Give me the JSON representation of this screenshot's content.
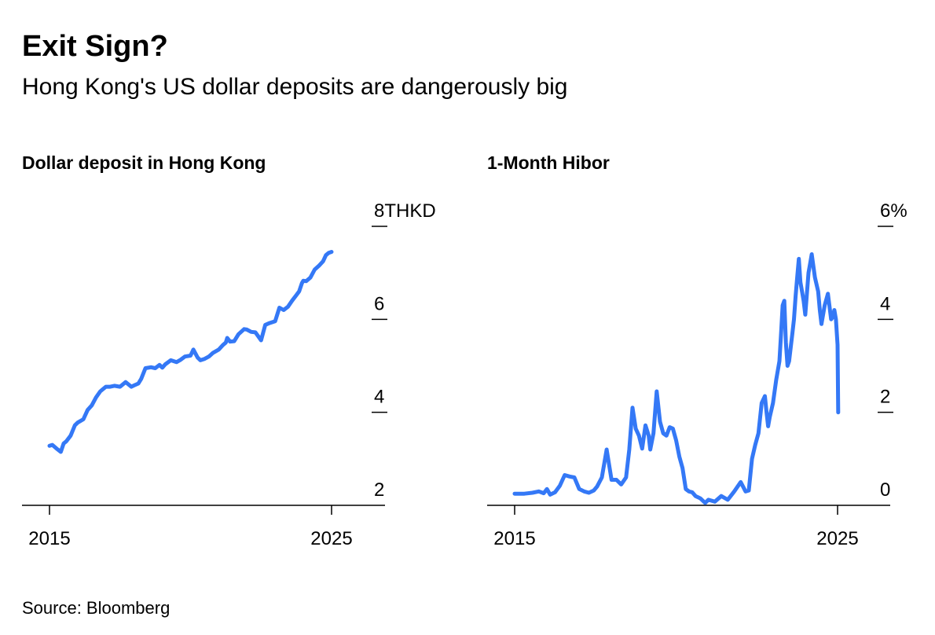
{
  "header": {
    "title": "Exit Sign?",
    "subtitle": "Hong Kong's US dollar deposits are dangerously big"
  },
  "footer": {
    "source": "Source: Bloomberg"
  },
  "colors": {
    "line": "#3478f6",
    "axis": "#000000"
  },
  "chart_data": [
    {
      "type": "line",
      "title": "Dollar deposit in Hong Kong",
      "ylabel": "",
      "unit_label": "THKD",
      "ylim": [
        2,
        8
      ],
      "yticks": [
        2,
        4,
        6,
        8
      ],
      "ytick_labels": [
        "2",
        "4",
        "6",
        "8"
      ],
      "xlim": [
        2014,
        2026
      ],
      "xticks": [
        2015,
        2025
      ],
      "xtick_labels": [
        "2015",
        "2025"
      ],
      "grid": false,
      "series": [
        {
          "x": [
            2015.0,
            2015.1,
            2015.25,
            2015.4,
            2015.5,
            2015.6,
            2015.75,
            2015.9,
            2016.0,
            2016.2,
            2016.35,
            2016.5,
            2016.65,
            2016.8,
            2017.0,
            2017.15,
            2017.3,
            2017.5,
            2017.7,
            2017.9,
            2018.0,
            2018.15,
            2018.25,
            2018.4,
            2018.6,
            2018.75,
            2018.9,
            2019.0,
            2019.1,
            2019.3,
            2019.5,
            2019.65,
            2019.8,
            2020.0,
            2020.1,
            2020.25,
            2020.35,
            2020.5,
            2020.65,
            2020.8,
            2021.0,
            2021.15,
            2021.25,
            2021.3,
            2021.4,
            2021.55,
            2021.7,
            2021.9,
            2022.0,
            2022.15,
            2022.3,
            2022.5,
            2022.65,
            2022.8,
            2023.0,
            2023.15,
            2023.3,
            2023.45,
            2023.6,
            2023.75,
            2023.85,
            2023.95,
            2024.0,
            2024.1,
            2024.25,
            2024.4,
            2024.55,
            2024.7,
            2024.8,
            2024.9,
            2025.0
          ],
          "values": [
            3.28,
            3.3,
            3.22,
            3.15,
            3.33,
            3.38,
            3.5,
            3.72,
            3.78,
            3.85,
            4.05,
            4.15,
            4.32,
            4.45,
            4.55,
            4.55,
            4.57,
            4.55,
            4.65,
            4.55,
            4.58,
            4.62,
            4.72,
            4.95,
            4.97,
            4.95,
            5.02,
            4.96,
            5.03,
            5.12,
            5.08,
            5.13,
            5.2,
            5.22,
            5.35,
            5.18,
            5.12,
            5.15,
            5.2,
            5.28,
            5.35,
            5.45,
            5.5,
            5.6,
            5.52,
            5.53,
            5.68,
            5.79,
            5.78,
            5.73,
            5.72,
            5.55,
            5.88,
            5.92,
            5.96,
            6.25,
            6.2,
            6.27,
            6.4,
            6.52,
            6.6,
            6.78,
            6.83,
            6.82,
            6.9,
            7.07,
            7.15,
            7.25,
            7.38,
            7.43,
            7.45
          ]
        }
      ]
    },
    {
      "type": "line",
      "title": "1-Month Hibor",
      "ylabel": "",
      "unit_label": "%",
      "ylim": [
        0,
        6
      ],
      "yticks": [
        0,
        2,
        4,
        6
      ],
      "ytick_labels": [
        "0",
        "2",
        "4",
        "6"
      ],
      "xlim": [
        2014,
        2026
      ],
      "xticks": [
        2015,
        2025
      ],
      "xtick_labels": [
        "2015",
        "2025"
      ],
      "grid": false,
      "series": [
        {
          "x": [
            2015.0,
            2015.3,
            2015.55,
            2015.75,
            2015.9,
            2016.0,
            2016.1,
            2016.25,
            2016.4,
            2016.55,
            2016.7,
            2016.85,
            2017.0,
            2017.15,
            2017.3,
            2017.45,
            2017.55,
            2017.7,
            2017.85,
            2018.0,
            2018.15,
            2018.3,
            2018.45,
            2018.55,
            2018.65,
            2018.75,
            2018.85,
            2018.95,
            2019.05,
            2019.15,
            2019.2,
            2019.3,
            2019.4,
            2019.5,
            2019.6,
            2019.7,
            2019.8,
            2019.9,
            2020.0,
            2020.1,
            2020.2,
            2020.3,
            2020.4,
            2020.5,
            2020.6,
            2020.75,
            2020.9,
            2021.0,
            2021.2,
            2021.4,
            2021.6,
            2021.8,
            2022.0,
            2022.15,
            2022.25,
            2022.35,
            2022.45,
            2022.55,
            2022.65,
            2022.75,
            2022.8,
            2022.85,
            2022.9,
            2023.0,
            2023.1,
            2023.2,
            2023.25,
            2023.3,
            2023.35,
            2023.4,
            2023.45,
            2023.5,
            2023.6,
            2023.65,
            2023.7,
            2023.75,
            2023.8,
            2023.85,
            2023.95,
            2024.0,
            2024.1,
            2024.15,
            2024.2,
            2024.3,
            2024.4,
            2024.45,
            2024.5,
            2024.6,
            2024.7,
            2024.8,
            2024.85,
            2024.9,
            2024.95,
            2025.0,
            2025.02
          ],
          "values": [
            0.25,
            0.25,
            0.27,
            0.3,
            0.26,
            0.35,
            0.23,
            0.28,
            0.42,
            0.65,
            0.62,
            0.6,
            0.35,
            0.3,
            0.27,
            0.32,
            0.4,
            0.6,
            1.2,
            0.55,
            0.55,
            0.45,
            0.6,
            1.2,
            2.1,
            1.65,
            1.5,
            1.22,
            1.72,
            1.5,
            1.2,
            1.55,
            2.45,
            1.8,
            1.55,
            1.5,
            1.68,
            1.65,
            1.4,
            1.05,
            0.8,
            0.35,
            0.3,
            0.28,
            0.2,
            0.15,
            0.05,
            0.12,
            0.08,
            0.2,
            0.12,
            0.3,
            0.5,
            0.3,
            0.32,
            1.0,
            1.3,
            1.55,
            2.2,
            2.35,
            2.0,
            1.7,
            1.9,
            2.2,
            2.7,
            3.1,
            3.7,
            4.3,
            4.4,
            3.5,
            3.0,
            3.1,
            3.7,
            4.0,
            4.5,
            4.9,
            5.3,
            4.8,
            4.4,
            4.1,
            5.0,
            5.2,
            5.4,
            4.9,
            4.6,
            4.2,
            3.9,
            4.3,
            4.55,
            4.0,
            4.05,
            4.2,
            4.0,
            3.45,
            2.0
          ]
        }
      ]
    }
  ]
}
